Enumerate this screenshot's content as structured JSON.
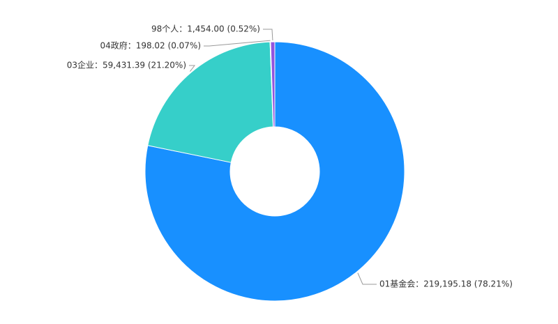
{
  "chart_data": {
    "type": "pie",
    "variant": "donut",
    "start": "top, clockwise",
    "slices": [
      {
        "name": "01基金会",
        "value": 219195.18,
        "value_label": "219,195.18",
        "percent_label": "78.21%",
        "color": "#1890ff"
      },
      {
        "name": "03企业",
        "value": 59431.39,
        "value_label": "59,431.39",
        "percent_label": "21.20%",
        "color": "#36cfc9"
      },
      {
        "name": "04政府",
        "value": 198.02,
        "value_label": "198.02",
        "percent_label": "0.07%",
        "color": "#73d13d"
      },
      {
        "name": "98个人",
        "value": 1454.0,
        "value_label": "1,454.00",
        "percent_label": "0.52%",
        "color": "#9254de"
      }
    ]
  }
}
